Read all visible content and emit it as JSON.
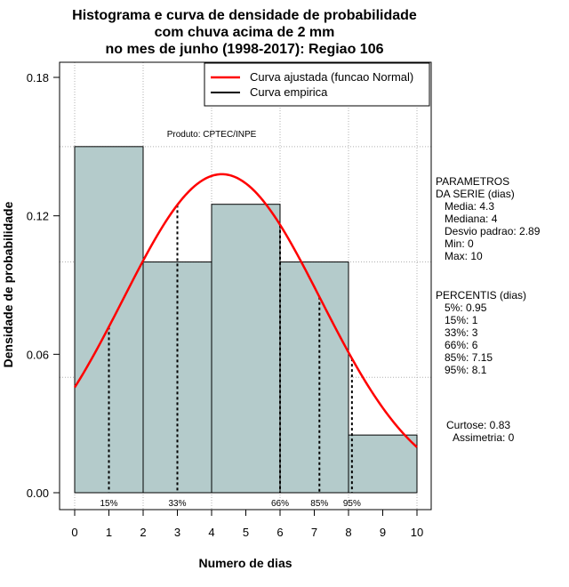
{
  "chart_data": {
    "type": "bar",
    "title_lines": [
      "Histograma e curva de densidade de probabilidade",
      "com chuva acima de 2 mm",
      "no mes de junho (1998-2017): Regiao 106"
    ],
    "xlabel": "Numero de dias",
    "ylabel": "Densidade de probabilidade",
    "xlim": [
      0,
      10
    ],
    "ylim": [
      0,
      0.18
    ],
    "x_ticks": [
      "0",
      "1",
      "2",
      "3",
      "4",
      "5",
      "6",
      "7",
      "8",
      "9",
      "10"
    ],
    "y_ticks": [
      "0.00",
      "0.06",
      "0.12",
      "0.18"
    ],
    "bins": [
      {
        "from": 0,
        "to": 2,
        "density": 0.15
      },
      {
        "from": 2,
        "to": 4,
        "density": 0.1
      },
      {
        "from": 4,
        "to": 6,
        "density": 0.125
      },
      {
        "from": 6,
        "to": 8,
        "density": 0.1
      },
      {
        "from": 8,
        "to": 10,
        "density": 0.025
      }
    ],
    "normal_curve": {
      "mean": 4.3,
      "sd": 2.89,
      "x_range": [
        0,
        10
      ]
    },
    "percentile_lines": [
      {
        "label": "15%",
        "x": 1.0
      },
      {
        "label": "33%",
        "x": 3.0
      },
      {
        "label": "66%",
        "x": 6.0
      },
      {
        "label": "85%",
        "x": 7.15
      },
      {
        "label": "95%",
        "x": 8.1
      }
    ],
    "legend": [
      {
        "label": "Curva ajustada (funcao Normal)",
        "color": "#ff0000"
      },
      {
        "label": "Curva empirica",
        "color": "#000000"
      }
    ],
    "legend_position": "top-right",
    "product_label": "Produto: CPTEC/INPE",
    "grid": true,
    "colors": {
      "bar_fill": "#b4cbcb",
      "curve": "#ff0000",
      "grid": "#b0b0b0"
    }
  },
  "side_panel": {
    "parametros": [
      "PARAMETROS",
      "DA SERIE (dias)",
      "   Media: 4.3",
      "   Mediana: 4",
      "   Desvio padrao: 2.89",
      "   Min: 0",
      "   Max: 10"
    ],
    "percentis": [
      "PERCENTIS (dias)",
      "   5%: 0.95",
      "   15%: 1",
      "   33%: 3",
      "   66%: 6",
      "   85%: 7.15",
      "   95%: 8.1"
    ],
    "shape": [
      "Curtose: 0.83",
      "Assimetria: 0"
    ]
  }
}
